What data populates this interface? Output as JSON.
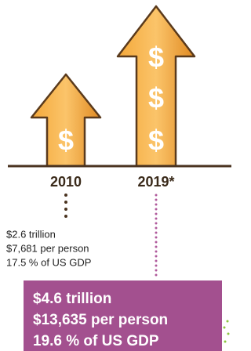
{
  "periods": [
    {
      "label": "2010",
      "symbols": [
        "$"
      ],
      "lines": [
        "$2.6 trillion",
        "$7,681 per person",
        "17.5 % of US GDP"
      ]
    },
    {
      "label": "2019*",
      "symbols": [
        "$",
        "$",
        "$"
      ],
      "lines": [
        "$4.6 trillion",
        "$13,635 per person",
        "19.6 % of US GDP"
      ]
    }
  ]
}
